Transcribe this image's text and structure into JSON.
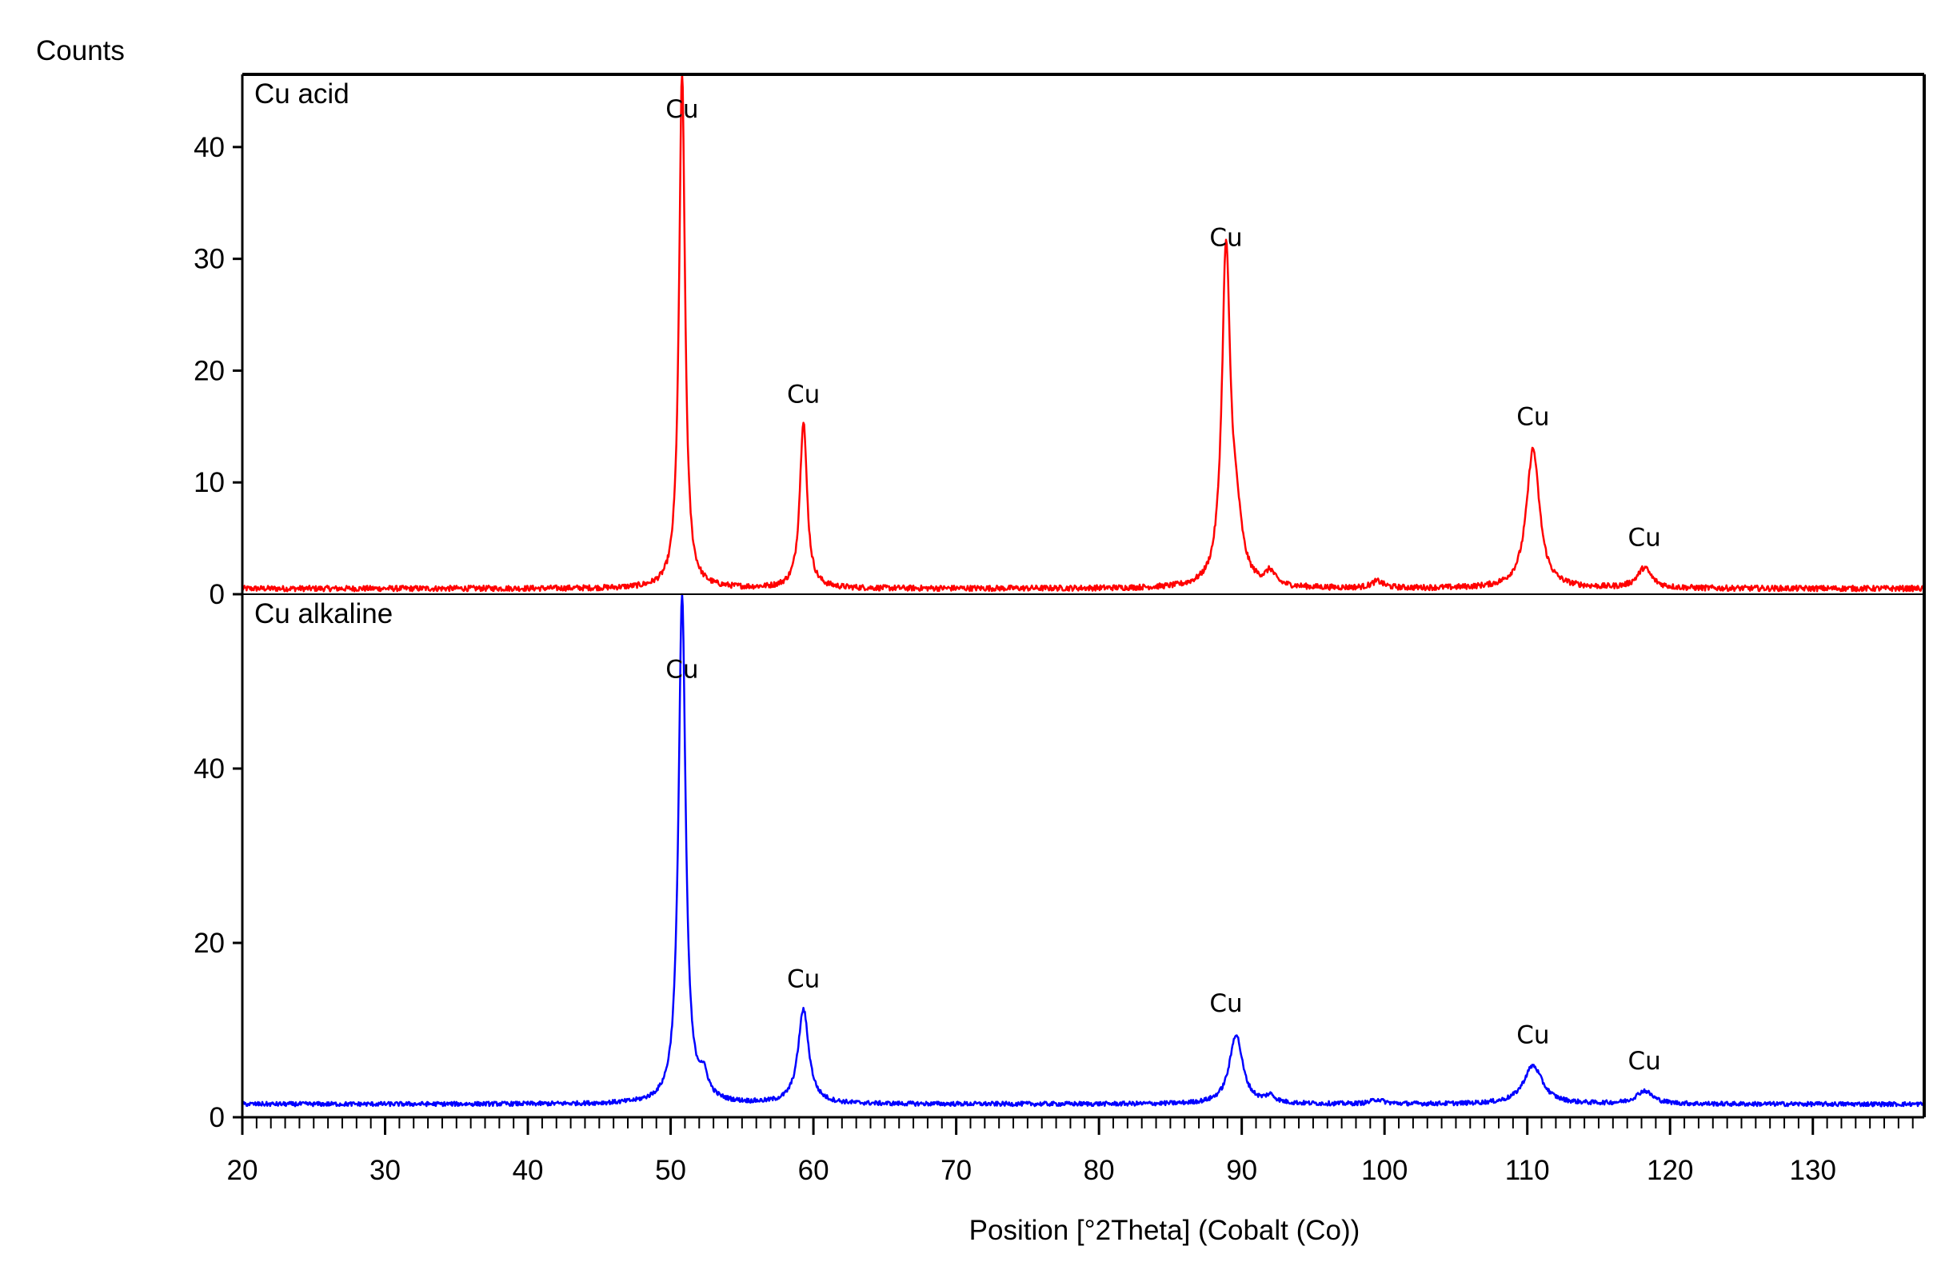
{
  "chart_data": {
    "type": "line",
    "ylabel": "Counts",
    "xlabel": "Position [°2Theta] (Cobalt (Co))",
    "xlim": [
      20,
      137.8
    ],
    "xticks": [
      20,
      30,
      40,
      50,
      60,
      70,
      80,
      90,
      100,
      110,
      120,
      130
    ],
    "grid": false,
    "panels": [
      {
        "name": "Cu acid",
        "color": "#ff0000",
        "ylim": [
          0,
          46.5
        ],
        "yticks": [
          0,
          10,
          20,
          30,
          40
        ],
        "baseline": 0.5,
        "series": {
          "name": "Cu acid",
          "peaks": [
            {
              "x": 50.8,
              "y": 46.5,
              "width": 0.25
            },
            {
              "x": 59.3,
              "y": 15.0,
              "width": 0.3
            },
            {
              "x": 88.9,
              "y": 29.5,
              "width": 0.35
            },
            {
              "x": 89.6,
              "y": 5.0,
              "width": 0.5
            },
            {
              "x": 92.0,
              "y": 1.2,
              "width": 0.4
            },
            {
              "x": 99.5,
              "y": 0.6,
              "width": 0.5
            },
            {
              "x": 110.4,
              "y": 12.5,
              "width": 0.55
            },
            {
              "x": 118.2,
              "y": 1.8,
              "width": 0.6
            }
          ]
        },
        "annotations": [
          {
            "text": "Cu",
            "x": 50.8,
            "y": 43.5
          },
          {
            "text": "Cu",
            "x": 59.3,
            "y": 18.0
          },
          {
            "text": "Cu",
            "x": 88.9,
            "y": 32.0
          },
          {
            "text": "Cu",
            "x": 110.4,
            "y": 16.0
          },
          {
            "text": "Cu",
            "x": 118.2,
            "y": 5.2
          }
        ]
      },
      {
        "name": "Cu alkaline",
        "color": "#0000ff",
        "ylim": [
          0,
          60
        ],
        "yticks": [
          0,
          20,
          40
        ],
        "baseline": 1.5,
        "series": {
          "name": "Cu alkaline",
          "peaks": [
            {
              "x": 50.8,
              "y": 58.5,
              "width": 0.3
            },
            {
              "x": 52.3,
              "y": 2.5,
              "width": 0.4
            },
            {
              "x": 59.3,
              "y": 10.8,
              "width": 0.45
            },
            {
              "x": 89.6,
              "y": 8.0,
              "width": 0.55
            },
            {
              "x": 92.0,
              "y": 0.8,
              "width": 0.4
            },
            {
              "x": 99.5,
              "y": 0.5,
              "width": 0.5
            },
            {
              "x": 110.4,
              "y": 4.4,
              "width": 0.8
            },
            {
              "x": 118.2,
              "y": 1.5,
              "width": 0.7
            }
          ]
        },
        "annotations": [
          {
            "text": "Cu",
            "x": 50.8,
            "y": 51.5
          },
          {
            "text": "Cu",
            "x": 59.3,
            "y": 16.0
          },
          {
            "text": "Cu",
            "x": 88.9,
            "y": 13.2
          },
          {
            "text": "Cu",
            "x": 110.4,
            "y": 9.6
          },
          {
            "text": "Cu",
            "x": 118.2,
            "y": 6.6
          }
        ]
      }
    ]
  }
}
